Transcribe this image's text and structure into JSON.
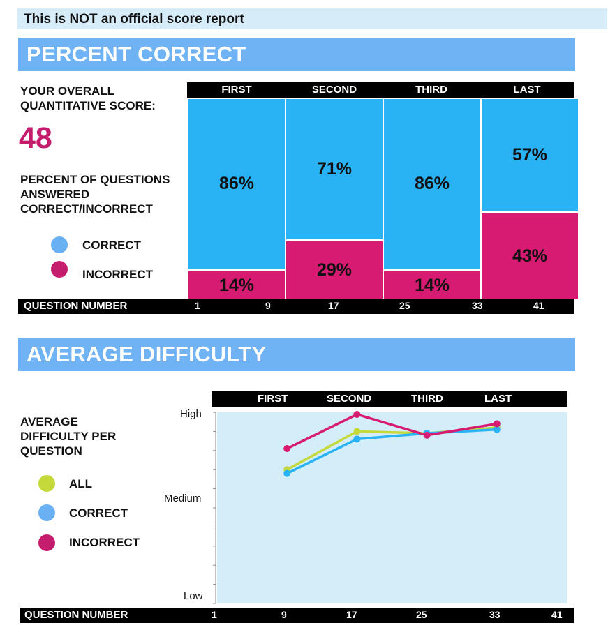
{
  "notice": "This is NOT an official score report",
  "percent_section": {
    "title": "PERCENT CORRECT",
    "score_label_1": "YOUR OVERALL",
    "score_label_2": "QUANTITATIVE SCORE:",
    "score": "48",
    "pq_label_1": "PERCENT OF QUESTIONS",
    "pq_label_2": "ANSWERED",
    "pq_label_3": "CORRECT/INCORRECT",
    "legend": [
      {
        "label": "CORRECT",
        "color": "#6ab1f3"
      },
      {
        "label": "INCORRECT",
        "color": "#c41d6d"
      }
    ],
    "question_number_label": "QUESTION  NUMBER"
  },
  "difficulty_section": {
    "title": "AVERAGE DIFFICULTY",
    "label_1": "AVERAGE",
    "label_2": "DIFFICULTY PER",
    "label_3": "QUESTION",
    "legend": [
      {
        "label": "ALL",
        "color": "#c6d93b"
      },
      {
        "label": "CORRECT",
        "color": "#6ab1f3"
      },
      {
        "label": "INCORRECT",
        "color": "#c41d6d"
      }
    ],
    "y_labels": {
      "high": "High",
      "medium": "Medium",
      "low": "Low"
    },
    "question_number_label": "QUESTION  NUMBER"
  },
  "chart_data": [
    {
      "type": "bar",
      "title": "PERCENT CORRECT",
      "categories": [
        "FIRST",
        "SECOND",
        "THIRD",
        "LAST"
      ],
      "series": [
        {
          "name": "CORRECT",
          "values": [
            86,
            71,
            86,
            57
          ],
          "labels": [
            "86%",
            "71%",
            "86%",
            "57%"
          ],
          "color": "#29b3f4"
        },
        {
          "name": "INCORRECT",
          "values": [
            14,
            29,
            14,
            43
          ],
          "labels": [
            "14%",
            "29%",
            "14%",
            "43%"
          ],
          "color": "#d81b72"
        }
      ],
      "x_ticks": [
        "1",
        "9",
        "17",
        "25",
        "33",
        "41"
      ],
      "ylim": [
        0,
        100
      ],
      "stacked": true
    },
    {
      "type": "line",
      "title": "AVERAGE DIFFICULTY",
      "categories": [
        "FIRST",
        "SECOND",
        "THIRD",
        "LAST"
      ],
      "x": [
        9,
        17,
        25,
        33
      ],
      "x_ticks": [
        "1",
        "9",
        "17",
        "25",
        "33",
        "41"
      ],
      "y_ticks": [
        "Low",
        "Medium",
        "High"
      ],
      "ylim": [
        0,
        1
      ],
      "series": [
        {
          "name": "ALL",
          "values": [
            0.7,
            0.9,
            0.89,
            0.92
          ],
          "color": "#c6d93b"
        },
        {
          "name": "CORRECT",
          "values": [
            0.68,
            0.86,
            0.89,
            0.91
          ],
          "color": "#29b3f4"
        },
        {
          "name": "INCORRECT",
          "values": [
            0.81,
            1.0,
            0.88,
            0.94
          ],
          "color": "#d81b72"
        }
      ],
      "grid": false,
      "background": "#d3edf9"
    }
  ]
}
